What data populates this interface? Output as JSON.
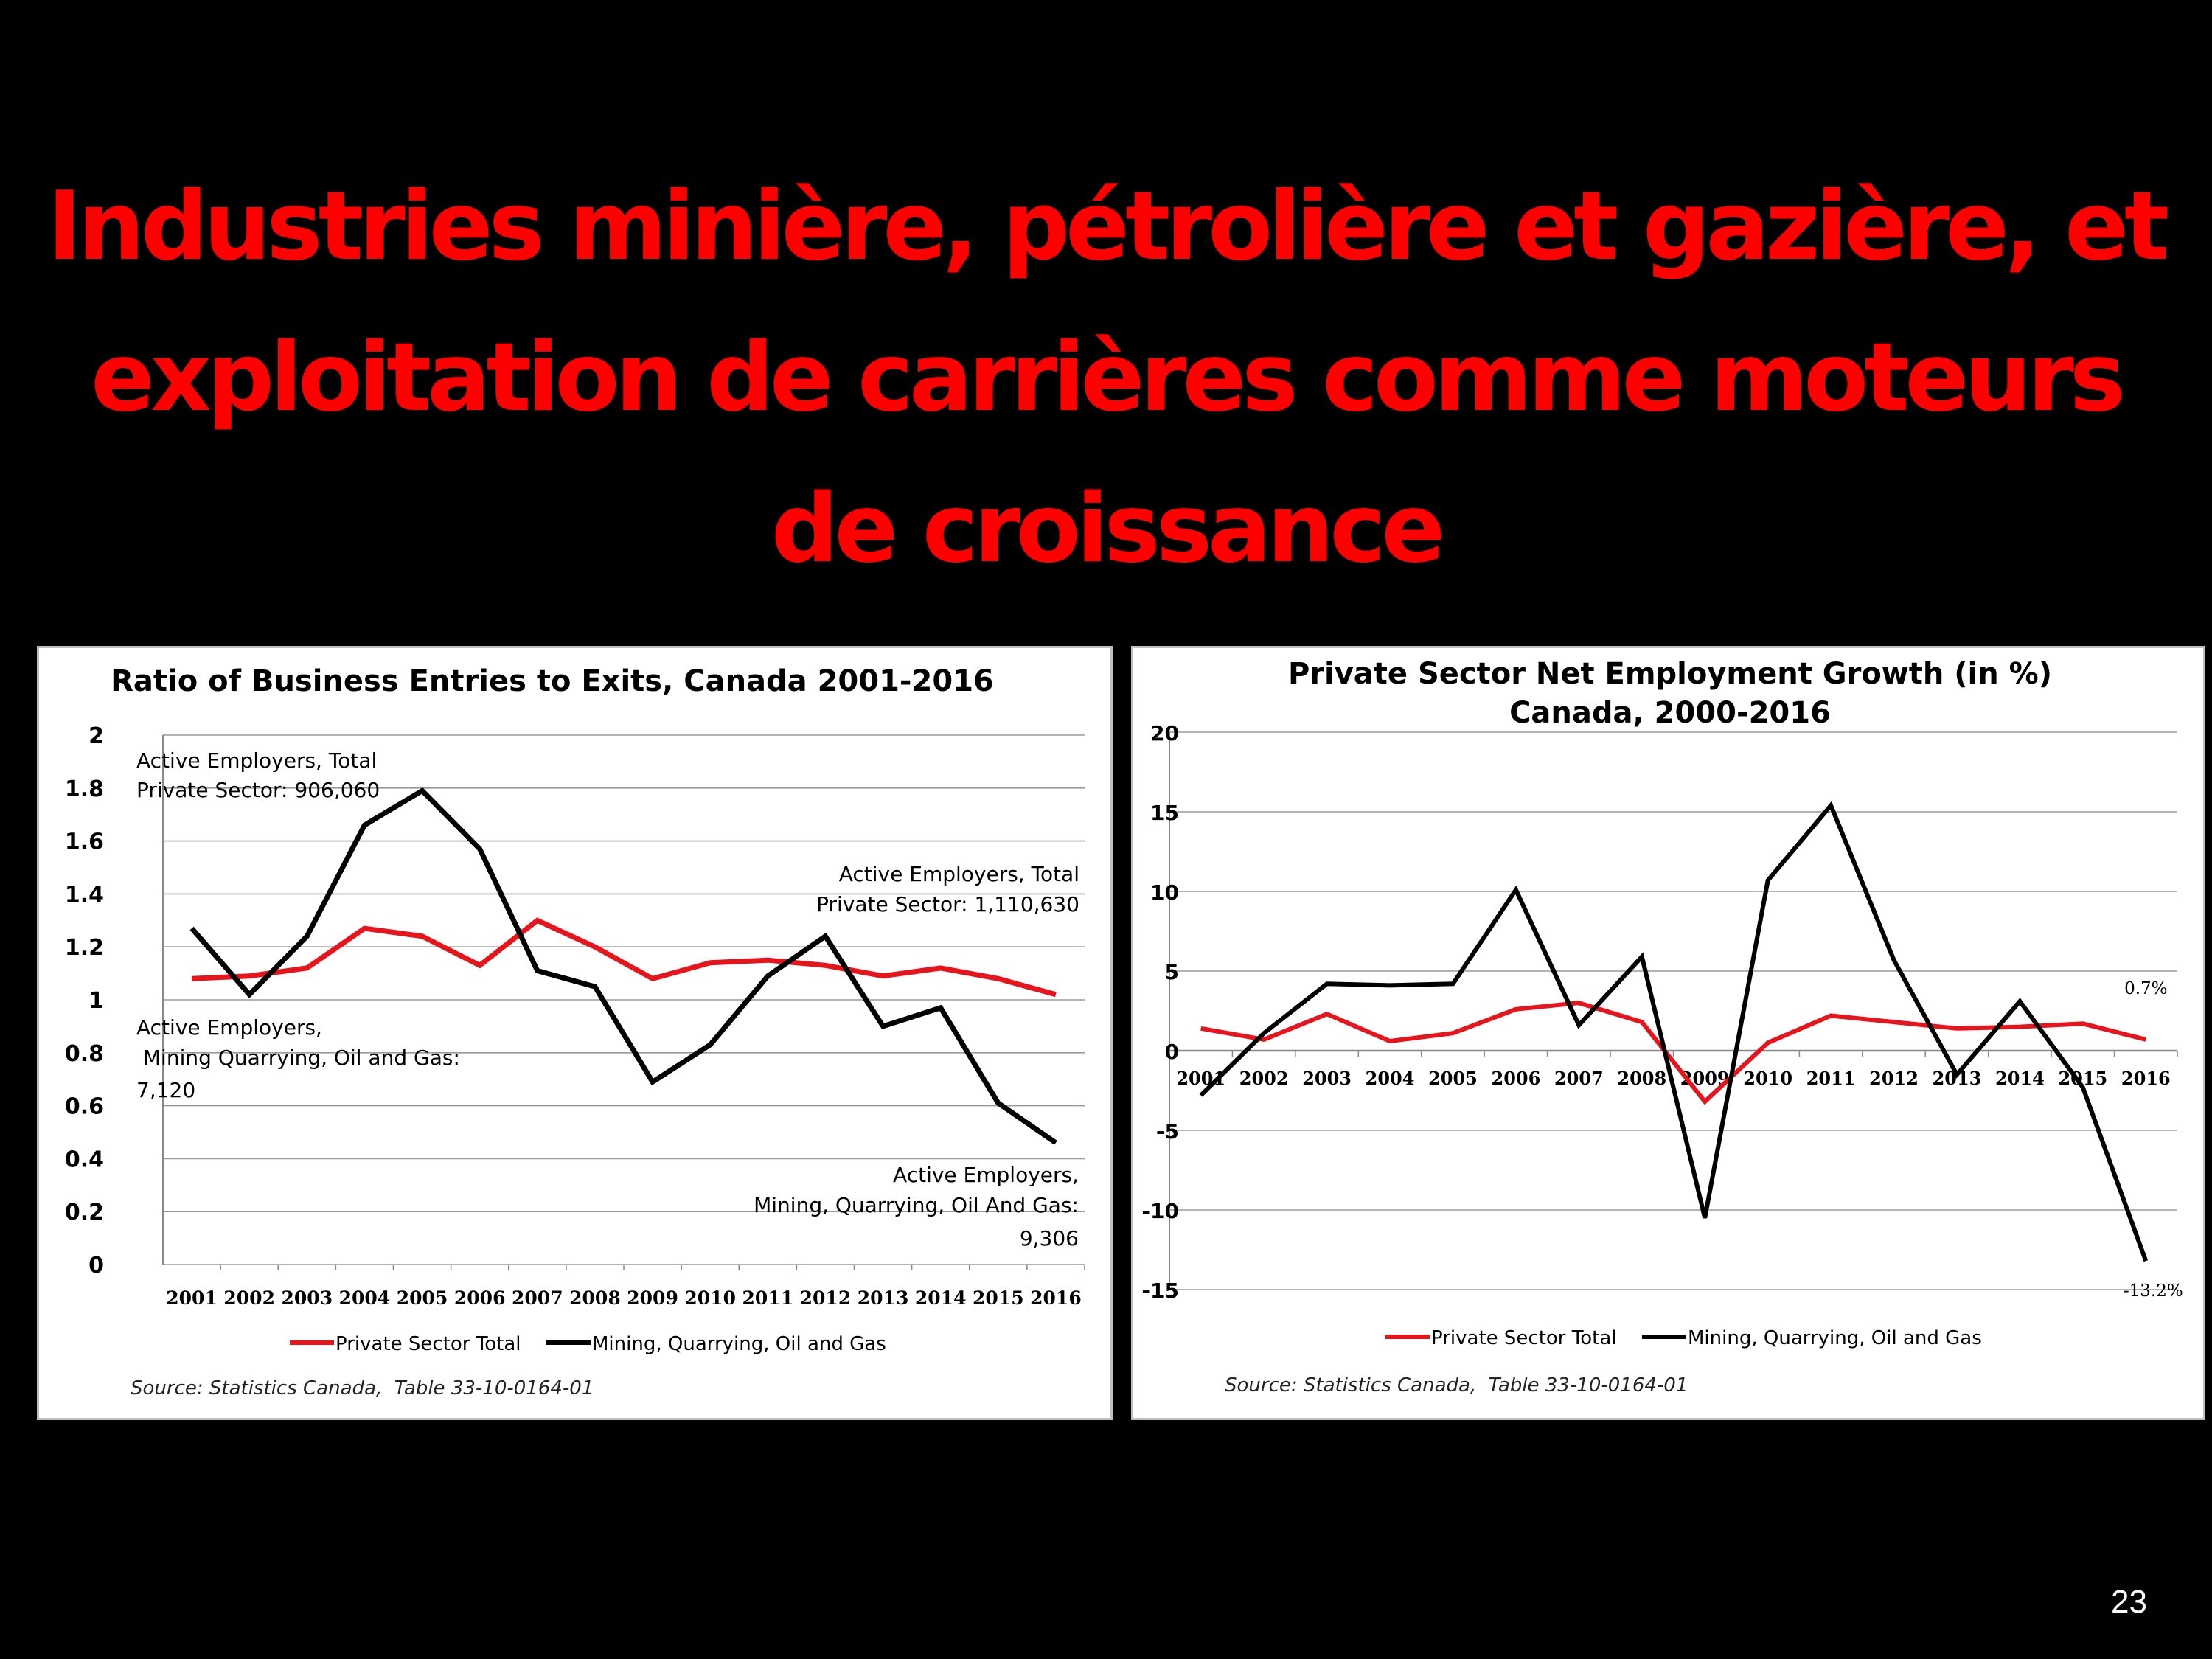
{
  "slide": {
    "title_lines": [
      "Industries minière, pétrolière et gazière, et",
      "exploitation de carrières comme moteurs",
      "de croissance"
    ],
    "page_number": "23"
  },
  "chart_data": [
    {
      "type": "line",
      "title": "Ratio of Business Entries to Exits, Canada 2001-2016",
      "categories": [
        "2001",
        "2002",
        "2003",
        "2004",
        "2005",
        "2006",
        "2007",
        "2008",
        "2009",
        "2010",
        "2011",
        "2012",
        "2013",
        "2014",
        "2015",
        "2016"
      ],
      "series": [
        {
          "name": "Private Sector Total",
          "color": "#e8141c",
          "values": [
            1.08,
            1.09,
            1.12,
            1.27,
            1.24,
            1.13,
            1.3,
            1.2,
            1.08,
            1.14,
            1.15,
            1.13,
            1.09,
            1.12,
            1.08,
            1.02
          ]
        },
        {
          "name": "Mining, Quarrying, Oil and Gas",
          "color": "#000000",
          "values": [
            1.27,
            1.02,
            1.24,
            1.66,
            1.79,
            1.57,
            1.11,
            1.05,
            0.69,
            0.83,
            1.09,
            1.24,
            0.9,
            0.97,
            0.61,
            0.46
          ]
        }
      ],
      "yticks": [
        "2",
        "1.8",
        "1.6",
        "1.4",
        "1.2",
        "1",
        "0.8",
        "0.6",
        "0.4",
        "0.2",
        "0"
      ],
      "ylim": [
        0,
        2
      ],
      "grid": true,
      "legend": "bottom",
      "annotations": {
        "top_left": [
          "Active Employers, Total",
          "Private Sector: 906,060"
        ],
        "mid_left": [
          "Active Employers,",
          " Mining Quarrying, Oil and Gas:",
          "7,120"
        ],
        "top_right": [
          "Active Employers, Total",
          "Private Sector: 1,110,630"
        ],
        "bottom_right": [
          "Active Employers,",
          "Mining, Quarrying, Oil And Gas:",
          "9,306"
        ]
      },
      "source": "Source: Statistics Canada,  Table 33-10-0164-01"
    },
    {
      "type": "line",
      "title_lines": [
        "Private Sector Net Employment Growth (in %)",
        "Canada, 2000-2016"
      ],
      "categories": [
        "2001",
        "2002",
        "2003",
        "2004",
        "2005",
        "2006",
        "2007",
        "2008",
        "2009",
        "2010",
        "2011",
        "2012",
        "2013",
        "2014",
        "2015",
        "2016"
      ],
      "series": [
        {
          "name": "Private Sector Total",
          "color": "#e8141c",
          "values": [
            1.4,
            0.7,
            2.3,
            0.6,
            1.1,
            2.6,
            3.0,
            1.8,
            -3.2,
            0.5,
            2.2,
            1.8,
            1.4,
            1.5,
            1.7,
            0.7
          ]
        },
        {
          "name": "Mining, Quarrying, Oil and Gas",
          "color": "#000000",
          "values": [
            -2.8,
            1.1,
            4.2,
            4.1,
            4.2,
            10.1,
            1.6,
            5.9,
            -10.5,
            10.7,
            15.4,
            5.7,
            -1.5,
            3.1,
            -2.3,
            -13.2
          ]
        }
      ],
      "yticks": [
        "20",
        "15",
        "10",
        "5",
        "0",
        "-5",
        "-10",
        "-15"
      ],
      "ylim": [
        -15,
        20
      ],
      "grid": true,
      "legend": "bottom",
      "end_labels": {
        "red": "0.7%",
        "black": "-13.2%"
      },
      "source": "Source: Statistics Canada,  Table 33-10-0164-01"
    }
  ]
}
